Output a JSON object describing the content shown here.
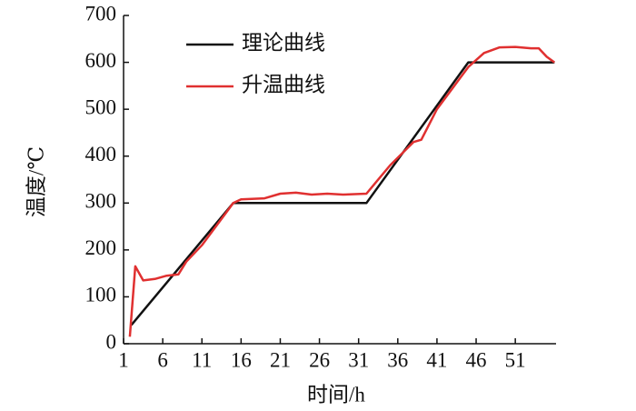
{
  "chart_data": {
    "type": "line",
    "xlabel": "时间/h",
    "ylabel": "温度/℃",
    "xlim": [
      1,
      56.2
    ],
    "ylim": [
      0,
      700
    ],
    "xticks": [
      1,
      6,
      11,
      16,
      21,
      26,
      31,
      36,
      41,
      46,
      51
    ],
    "yticks": [
      0,
      100,
      200,
      300,
      400,
      500,
      600,
      700
    ],
    "legend": "upper left",
    "series": [
      {
        "name": "理论曲线",
        "color": "#111111",
        "x": [
          2,
          15,
          32,
          45,
          56
        ],
        "values": [
          40,
          300,
          300,
          600,
          600
        ]
      },
      {
        "name": "升温曲线",
        "color": "#e03030",
        "x": [
          1.8,
          2.5,
          3.5,
          5,
          6.5,
          8,
          9,
          11,
          13,
          15,
          16,
          19,
          21,
          23,
          25,
          27,
          29,
          32,
          33,
          35,
          38,
          39,
          41,
          43,
          45,
          47,
          49,
          51,
          53,
          54,
          55,
          56
        ],
        "values": [
          15,
          165,
          135,
          138,
          145,
          148,
          175,
          210,
          255,
          300,
          308,
          310,
          320,
          322,
          318,
          320,
          318,
          320,
          340,
          380,
          430,
          435,
          500,
          545,
          590,
          620,
          632,
          633,
          630,
          630,
          612,
          600
        ]
      }
    ]
  }
}
